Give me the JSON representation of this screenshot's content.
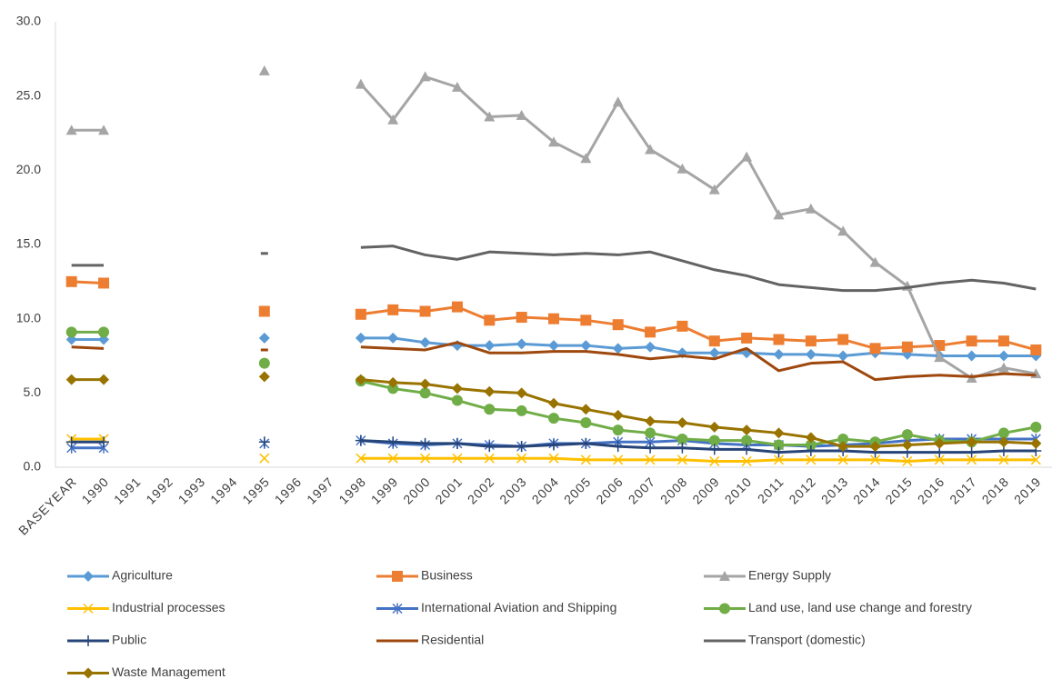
{
  "chart_data": {
    "type": "line",
    "categories": [
      "BASEYEAR",
      "1990",
      "1991",
      "1992",
      "1993",
      "1994",
      "1995",
      "1996",
      "1997",
      "1998",
      "1999",
      "2000",
      "2001",
      "2002",
      "2003",
      "2004",
      "2005",
      "2006",
      "2007",
      "2008",
      "2009",
      "2010",
      "2011",
      "2012",
      "2013",
      "2014",
      "2015",
      "2016",
      "2017",
      "2018",
      "2019"
    ],
    "ylim": [
      0,
      30
    ],
    "yticks": [
      {
        "value": 0,
        "label": "0.0"
      },
      {
        "value": 5,
        "label": "5.0"
      },
      {
        "value": 10,
        "label": "10.0"
      },
      {
        "value": 15,
        "label": "15.0"
      },
      {
        "value": 20,
        "label": "20.0"
      },
      {
        "value": 25,
        "label": "25.0"
      },
      {
        "value": 30,
        "label": "30.0"
      }
    ],
    "grid": false,
    "legend": "bottom",
    "series": [
      {
        "name": "Agriculture",
        "color": "#5b9bd5",
        "marker": "diamond",
        "values": [
          8.6,
          8.6,
          null,
          null,
          null,
          null,
          8.7,
          null,
          null,
          8.7,
          8.7,
          8.4,
          8.2,
          8.2,
          8.3,
          8.2,
          8.2,
          8.0,
          8.1,
          7.7,
          7.7,
          7.7,
          7.6,
          7.6,
          7.5,
          7.7,
          7.6,
          7.5,
          7.5,
          7.5,
          7.5
        ]
      },
      {
        "name": "Business",
        "color": "#ed7d31",
        "marker": "square",
        "values": [
          12.5,
          12.4,
          null,
          null,
          null,
          null,
          10.5,
          null,
          null,
          10.3,
          10.6,
          10.5,
          10.8,
          9.9,
          10.1,
          10.0,
          9.9,
          9.6,
          9.1,
          9.5,
          8.5,
          8.7,
          8.6,
          8.5,
          8.6,
          8.0,
          8.1,
          8.2,
          8.5,
          8.5,
          7.9
        ]
      },
      {
        "name": "Energy Supply",
        "color": "#a5a5a5",
        "marker": "triangle",
        "values": [
          22.7,
          22.7,
          null,
          null,
          null,
          null,
          26.7,
          null,
          null,
          25.8,
          23.4,
          26.3,
          25.6,
          23.6,
          23.7,
          21.9,
          20.8,
          24.6,
          21.4,
          20.1,
          18.7,
          20.9,
          17.0,
          17.4,
          15.9,
          13.8,
          12.2,
          7.4,
          6.0,
          6.7,
          6.3
        ]
      },
      {
        "name": "Industrial processes",
        "color": "#ffc000",
        "marker": "x",
        "values": [
          1.9,
          1.9,
          null,
          null,
          null,
          null,
          0.6,
          null,
          null,
          0.6,
          0.6,
          0.6,
          0.6,
          0.6,
          0.6,
          0.6,
          0.5,
          0.5,
          0.5,
          0.5,
          0.4,
          0.4,
          0.5,
          0.5,
          0.5,
          0.5,
          0.4,
          0.5,
          0.5,
          0.5,
          0.5
        ]
      },
      {
        "name": "International Aviation and Shipping",
        "color": "#4472c4",
        "marker": "star",
        "values": [
          1.3,
          1.3,
          null,
          null,
          null,
          null,
          1.6,
          null,
          null,
          1.8,
          1.6,
          1.5,
          1.6,
          1.5,
          1.4,
          1.6,
          1.6,
          1.7,
          1.7,
          1.8,
          1.6,
          1.5,
          1.5,
          1.4,
          1.5,
          1.6,
          1.8,
          1.9,
          1.9,
          1.9,
          1.9
        ]
      },
      {
        "name": "Land use, land use change and forestry",
        "color": "#70ad47",
        "marker": "circle",
        "values": [
          9.1,
          9.1,
          null,
          null,
          null,
          null,
          7.0,
          null,
          null,
          5.8,
          5.3,
          5.0,
          4.5,
          3.9,
          3.8,
          3.3,
          3.0,
          2.5,
          2.3,
          1.9,
          1.8,
          1.8,
          1.5,
          1.5,
          1.9,
          1.7,
          2.2,
          1.8,
          1.7,
          2.3,
          2.7
        ]
      },
      {
        "name": "Public",
        "color": "#264478",
        "marker": "plus",
        "values": [
          1.7,
          1.7,
          null,
          null,
          null,
          null,
          1.7,
          null,
          null,
          1.8,
          1.7,
          1.6,
          1.6,
          1.4,
          1.4,
          1.5,
          1.6,
          1.4,
          1.3,
          1.3,
          1.2,
          1.2,
          1.0,
          1.1,
          1.1,
          1.0,
          1.0,
          1.0,
          1.0,
          1.1,
          1.1
        ]
      },
      {
        "name": "Residential",
        "color": "#9e480e",
        "marker": "none",
        "values": [
          8.1,
          8.0,
          null,
          null,
          null,
          null,
          7.9,
          null,
          null,
          8.1,
          8.0,
          7.9,
          8.4,
          7.7,
          7.7,
          7.8,
          7.8,
          7.6,
          7.3,
          7.5,
          7.3,
          8.0,
          6.5,
          7.0,
          7.1,
          5.9,
          6.1,
          6.2,
          6.1,
          6.3,
          6.2
        ]
      },
      {
        "name": "Transport (domestic)",
        "color": "#636363",
        "marker": "none",
        "values": [
          13.6,
          13.6,
          null,
          null,
          null,
          null,
          14.4,
          null,
          null,
          14.8,
          14.9,
          14.3,
          14.0,
          14.5,
          14.4,
          14.3,
          14.4,
          14.3,
          14.5,
          13.9,
          13.3,
          12.9,
          12.3,
          12.1,
          11.9,
          11.9,
          12.1,
          12.4,
          12.6,
          12.4,
          12.0
        ]
      },
      {
        "name": "Waste Management",
        "color": "#997300",
        "marker": "diamond",
        "values": [
          5.9,
          5.9,
          null,
          null,
          null,
          null,
          6.1,
          null,
          null,
          5.9,
          5.7,
          5.6,
          5.3,
          5.1,
          5.0,
          4.3,
          3.9,
          3.5,
          3.1,
          3.0,
          2.7,
          2.5,
          2.3,
          2.0,
          1.4,
          1.4,
          1.5,
          1.6,
          1.7,
          1.7,
          1.6
        ]
      }
    ]
  }
}
